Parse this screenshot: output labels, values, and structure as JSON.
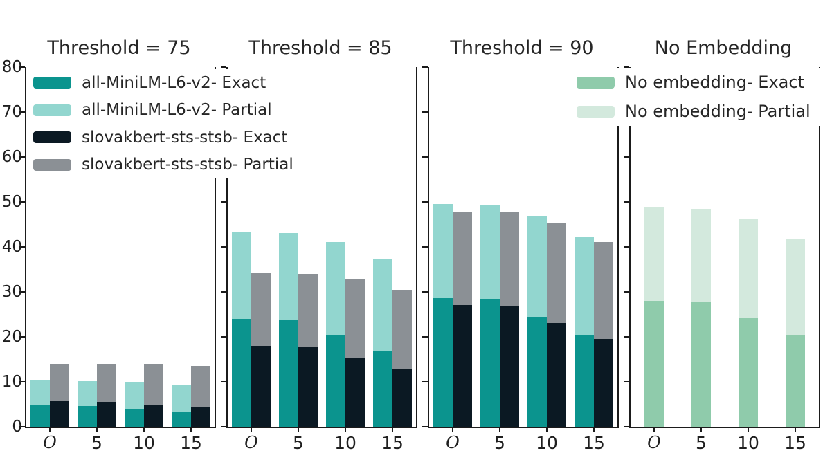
{
  "figure": {
    "background": "#ffffff",
    "y_axis": {
      "lim": [
        0,
        80
      ],
      "ticks": [
        0,
        10,
        20,
        30,
        40,
        50,
        60,
        70,
        80
      ]
    },
    "x_categories": [
      "𝒪",
      "5",
      "10",
      "15"
    ]
  },
  "chart_data": [
    {
      "type": "bar",
      "stacked": true,
      "title": "Threshold = 75",
      "categories": [
        "𝒪",
        "5",
        "10",
        "15"
      ],
      "ylim": [
        0,
        80
      ],
      "bars": [
        {
          "group": "all-MiniLM-L6-v2",
          "exact_label": "all-MiniLM-L6-v2- Exact",
          "partial_label": "all-MiniLM-L6-v2- Partial",
          "exact_color": "#0b948e",
          "partial_color": "#92d6cf",
          "exact": [
            4.7,
            4.6,
            4.0,
            3.3
          ],
          "exact_plus_partial": [
            10.3,
            10.1,
            10.0,
            9.2
          ]
        },
        {
          "group": "slovakbert-sts-stsb",
          "exact_label": "slovakbert-sts-stsb- Exact",
          "partial_label": "slovakbert-sts-stsb- Partial",
          "exact_color": "#0b1923",
          "partial_color": "#8b9095",
          "exact": [
            5.7,
            5.6,
            5.0,
            4.4
          ],
          "exact_plus_partial": [
            14.0,
            13.9,
            13.9,
            13.6
          ]
        }
      ]
    },
    {
      "type": "bar",
      "stacked": true,
      "title": "Threshold = 85",
      "categories": [
        "𝒪",
        "5",
        "10",
        "15"
      ],
      "ylim": [
        0,
        80
      ],
      "bars": [
        {
          "group": "all-MiniLM-L6-v2",
          "exact_label": "all-MiniLM-L6-v2- Exact",
          "partial_label": "all-MiniLM-L6-v2- Partial",
          "exact_color": "#0b948e",
          "partial_color": "#92d6cf",
          "exact": [
            24.0,
            23.8,
            20.3,
            17.0
          ],
          "exact_plus_partial": [
            43.2,
            43.1,
            41.1,
            37.4
          ]
        },
        {
          "group": "slovakbert-sts-stsb",
          "exact_label": "slovakbert-sts-stsb- Exact",
          "partial_label": "slovakbert-sts-stsb- Partial",
          "exact_color": "#0b1923",
          "partial_color": "#8b9095",
          "exact": [
            18.0,
            17.7,
            15.4,
            13.0
          ],
          "exact_plus_partial": [
            34.2,
            34.0,
            32.9,
            30.5
          ]
        }
      ]
    },
    {
      "type": "bar",
      "stacked": true,
      "title": "Threshold = 90",
      "categories": [
        "𝒪",
        "5",
        "10",
        "15"
      ],
      "ylim": [
        0,
        80
      ],
      "bars": [
        {
          "group": "all-MiniLM-L6-v2",
          "exact_label": "all-MiniLM-L6-v2- Exact",
          "partial_label": "all-MiniLM-L6-v2- Partial",
          "exact_color": "#0b948e",
          "partial_color": "#92d6cf",
          "exact": [
            28.6,
            28.3,
            24.5,
            20.4
          ],
          "exact_plus_partial": [
            49.5,
            49.3,
            46.7,
            42.2
          ]
        },
        {
          "group": "slovakbert-sts-stsb",
          "exact_label": "slovakbert-sts-stsb- Exact",
          "partial_label": "slovakbert-sts-stsb- Partial",
          "exact_color": "#0b1923",
          "partial_color": "#8b9095",
          "exact": [
            27.1,
            26.8,
            23.1,
            19.5
          ],
          "exact_plus_partial": [
            47.9,
            47.7,
            45.3,
            41.1
          ]
        }
      ]
    },
    {
      "type": "bar",
      "stacked": true,
      "title": "No Embedding",
      "categories": [
        "𝒪",
        "5",
        "10",
        "15"
      ],
      "ylim": [
        0,
        80
      ],
      "bars": [
        {
          "group": "No embedding",
          "exact_label": "No embedding- Exact",
          "partial_label": "No embedding- Partial",
          "exact_color": "#8fcbab",
          "partial_color": "#d3e9dd",
          "exact": [
            28.0,
            27.8,
            24.2,
            20.3
          ],
          "exact_plus_partial": [
            48.7,
            48.4,
            46.3,
            41.9
          ]
        }
      ]
    }
  ],
  "legends": [
    {
      "entries": [
        {
          "label": "all-MiniLM-L6-v2- Exact",
          "color": "#0b948e"
        },
        {
          "label": "all-MiniLM-L6-v2- Partial",
          "color": "#92d6cf"
        },
        {
          "label": "slovakbert-sts-stsb- Exact",
          "color": "#0b1923"
        },
        {
          "label": "slovakbert-sts-stsb- Partial",
          "color": "#8b9095"
        }
      ]
    },
    {
      "entries": [
        {
          "label": "No embedding- Exact",
          "color": "#8fcbab"
        },
        {
          "label": "No embedding- Partial",
          "color": "#d3e9dd"
        }
      ]
    }
  ]
}
